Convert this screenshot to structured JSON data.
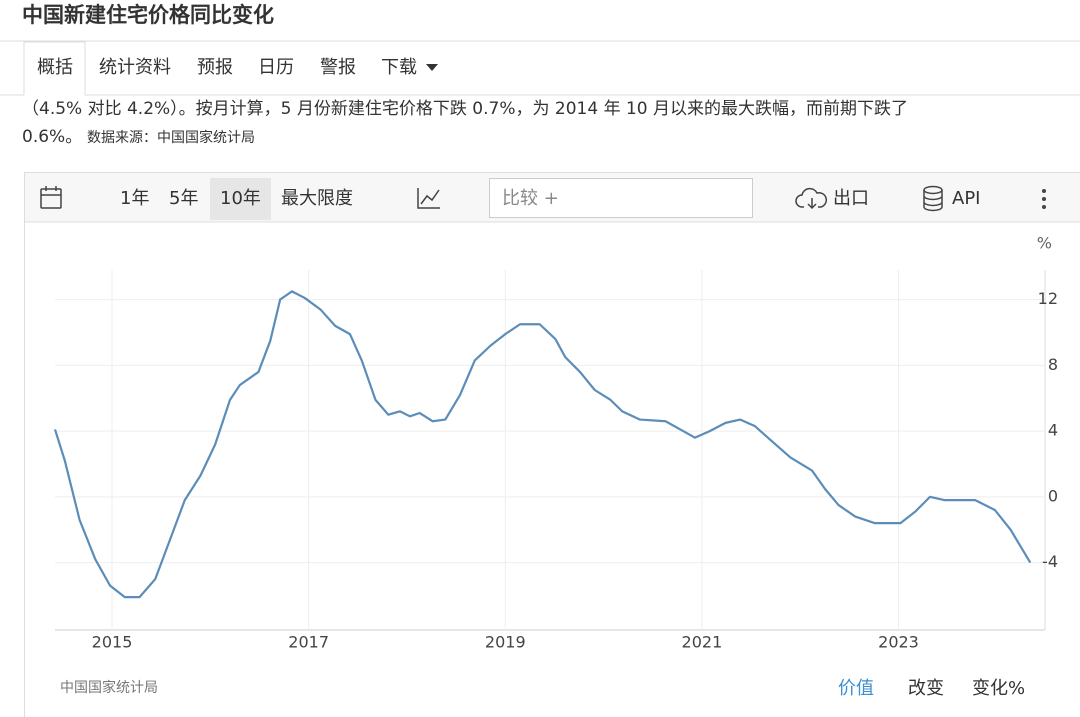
{
  "header": {
    "title": "中国新建住宅价格同比变化"
  },
  "tabs": [
    "概括",
    "统计资料",
    "预报",
    "日历",
    "警报",
    "下载"
  ],
  "summary": {
    "line1": "（4.5% 对比 4.2%）。按月计算，5 月份新建住宅价格下跌 0.7%，为 2014 年 10 月以来的最大跌幅，而前期下跌了",
    "line2": "0.6%。",
    "source": "数据来源：中国国家统计局"
  },
  "toolbar": {
    "ranges": [
      "1年",
      "5年",
      "10年",
      "最大限度"
    ],
    "compare": "比较 +",
    "export": "出口",
    "api": "API"
  },
  "chart_data": {
    "type": "line",
    "y_unit": "%",
    "x": [
      2014.42,
      2014.52,
      2014.67,
      2014.83,
      2014.98,
      2015.13,
      2015.28,
      2015.44,
      2015.59,
      2015.74,
      2015.9,
      2016.05,
      2016.2,
      2016.3,
      2016.49,
      2016.61,
      2016.71,
      2016.83,
      2016.96,
      2017.12,
      2017.27,
      2017.42,
      2017.54,
      2017.68,
      2017.81,
      2017.93,
      2018.03,
      2018.13,
      2018.26,
      2018.39,
      2018.54,
      2018.69,
      2018.85,
      2019.0,
      2019.15,
      2019.35,
      2019.51,
      2019.61,
      2019.76,
      2019.91,
      2020.07,
      2020.19,
      2020.37,
      2020.63,
      2020.78,
      2020.93,
      2021.08,
      2021.24,
      2021.39,
      2021.54,
      2021.69,
      2021.9,
      2022.12,
      2022.25,
      2022.39,
      2022.56,
      2022.76,
      2023.02,
      2023.17,
      2023.32,
      2023.47,
      2023.78,
      2023.98,
      2024.14,
      2024.34
    ],
    "series": [
      {
        "color": "#5b8db8",
        "values": [
          4.1,
          2.2,
          -1.4,
          -3.8,
          -5.4,
          -6.1,
          -6.1,
          -5.0,
          -2.6,
          -0.2,
          1.3,
          3.2,
          5.9,
          6.8,
          7.6,
          9.5,
          12.0,
          12.5,
          12.1,
          11.4,
          10.4,
          9.9,
          8.3,
          5.9,
          5.0,
          5.2,
          4.9,
          5.1,
          4.6,
          4.7,
          6.2,
          8.3,
          9.2,
          9.9,
          10.5,
          10.5,
          9.6,
          8.5,
          7.6,
          6.5,
          5.9,
          5.2,
          4.7,
          4.6,
          4.1,
          3.6,
          4.0,
          4.5,
          4.7,
          4.3,
          3.5,
          2.4,
          1.6,
          0.5,
          -0.5,
          -1.2,
          -1.6,
          -1.6,
          -0.9,
          0.0,
          -0.2,
          -0.2,
          -0.8,
          -2.0,
          -4.0
        ]
      }
    ],
    "xlim": [
      2014.42,
      2024.49
    ],
    "xticks": [
      2015,
      2017,
      2019,
      2021,
      2023
    ],
    "ylim": [
      -8.1,
      13.8
    ],
    "yticks": [
      12,
      8,
      4,
      0,
      -4
    ],
    "grid": true
  },
  "footer": {
    "source": "中国国家统计局",
    "views": [
      "价值",
      "改变",
      "变化%"
    ]
  }
}
